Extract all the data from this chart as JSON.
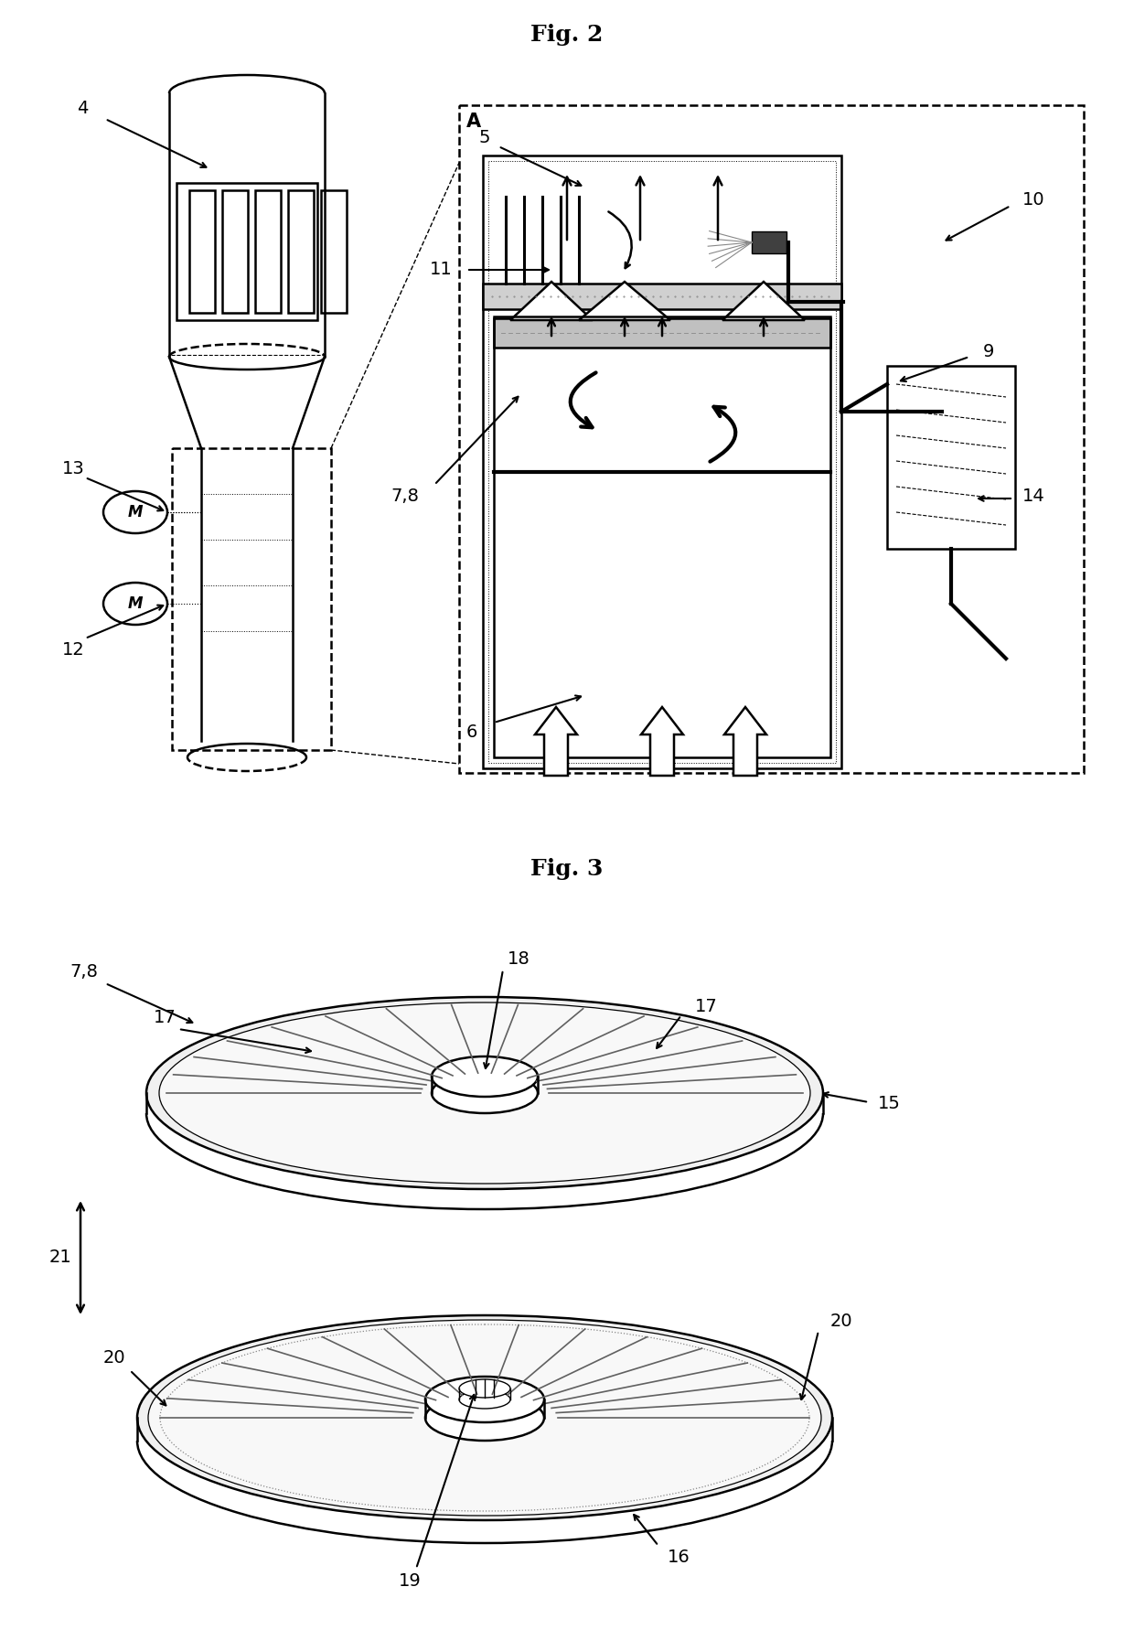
{
  "fig2_title": "Fig. 2",
  "fig3_title": "Fig. 3",
  "background_color": "#ffffff",
  "line_color": "#000000",
  "label_4": "4",
  "label_5": "5",
  "label_6": "6",
  "label_7_8": "7,8",
  "label_9": "9",
  "label_10": "10",
  "label_11": "11",
  "label_12": "12",
  "label_13": "13",
  "label_14": "14",
  "label_A": "A",
  "label_15": "15",
  "label_16": "16",
  "label_17a": "17",
  "label_17b": "17",
  "label_18": "18",
  "label_19": "19",
  "label_20a": "20",
  "label_20b": "20",
  "label_21": "21"
}
